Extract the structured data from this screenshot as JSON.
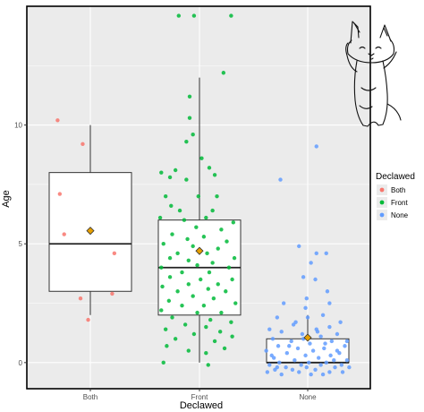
{
  "chart_data": {
    "type": "boxplot",
    "xlabel": "Declawed",
    "ylabel": "Age",
    "categories": [
      "Both",
      "Front",
      "None"
    ],
    "ylim": [
      -1.1,
      15
    ],
    "yticks": [
      0,
      5,
      10
    ],
    "grid": true,
    "legend": {
      "title": "Declawed",
      "position": "right",
      "entries": [
        "Both",
        "Front",
        "None"
      ]
    },
    "colors": {
      "Both": "#F8766D",
      "Front": "#00BA38",
      "None": "#619CFF",
      "mean_marker": "#E69F00",
      "panel": "#EBEBEB",
      "grid": "#FFFFFF"
    },
    "boxes": [
      {
        "category": "Both",
        "q1": 3.0,
        "median": 5.0,
        "q3": 8.0,
        "whisker_low": 2.0,
        "whisker_high": 10.0,
        "mean": 5.55
      },
      {
        "category": "Front",
        "q1": 2.0,
        "median": 4.0,
        "q3": 6.0,
        "whisker_low": 0.0,
        "whisker_high": 12.0,
        "mean": 4.7
      },
      {
        "category": "None",
        "q1": 0.0,
        "median": 0.0,
        "q3": 1.0,
        "whisker_low": 0.0,
        "whisker_high": 2.0,
        "mean": 1.05
      }
    ],
    "points": {
      "Both": [
        [
          -0.3,
          10.2
        ],
        [
          -0.07,
          9.2
        ],
        [
          -0.28,
          7.1
        ],
        [
          -0.24,
          5.4
        ],
        [
          0.22,
          4.6
        ],
        [
          -0.09,
          2.7
        ],
        [
          0.2,
          2.9
        ],
        [
          -0.02,
          1.8
        ]
      ],
      "Front": [
        [
          -0.19,
          14.6
        ],
        [
          -0.05,
          14.6
        ],
        [
          0.29,
          14.6
        ],
        [
          0.22,
          12.2
        ],
        [
          -0.09,
          11.2
        ],
        [
          -0.09,
          10.3
        ],
        [
          -0.06,
          9.6
        ],
        [
          -0.12,
          9.3
        ],
        [
          0.02,
          8.6
        ],
        [
          0.09,
          8.2
        ],
        [
          -0.35,
          8.0
        ],
        [
          -0.27,
          7.8
        ],
        [
          -0.22,
          8.1
        ],
        [
          -0.12,
          7.7
        ],
        [
          0.14,
          7.9
        ],
        [
          -0.31,
          7.0
        ],
        [
          -0.01,
          7.0
        ],
        [
          0.16,
          7.0
        ],
        [
          -0.26,
          6.6
        ],
        [
          -0.18,
          6.4
        ],
        [
          0.12,
          6.4
        ],
        [
          -0.36,
          6.1
        ],
        [
          -0.14,
          6.0
        ],
        [
          0.06,
          6.1
        ],
        [
          0.31,
          5.9
        ],
        [
          -0.03,
          5.7
        ],
        [
          0.2,
          5.6
        ],
        [
          -0.25,
          5.4
        ],
        [
          0.04,
          5.3
        ],
        [
          -0.11,
          5.2
        ],
        [
          0.25,
          5.1
        ],
        [
          -0.33,
          5.0
        ],
        [
          -0.06,
          4.9
        ],
        [
          0.17,
          4.8
        ],
        [
          -0.2,
          4.6
        ],
        [
          0.07,
          4.6
        ],
        [
          -0.27,
          4.4
        ],
        [
          0.32,
          4.4
        ],
        [
          -0.1,
          4.3
        ],
        [
          0.12,
          4.2
        ],
        [
          -0.02,
          4.1
        ],
        [
          -0.35,
          4.0
        ],
        [
          0.27,
          4.0
        ],
        [
          -0.16,
          3.8
        ],
        [
          0.09,
          3.8
        ],
        [
          -0.27,
          3.6
        ],
        [
          0.01,
          3.5
        ],
        [
          0.3,
          3.5
        ],
        [
          -0.1,
          3.3
        ],
        [
          0.17,
          3.3
        ],
        [
          -0.34,
          3.2
        ],
        [
          0.08,
          3.1
        ],
        [
          -0.2,
          3.0
        ],
        [
          0.24,
          3.0
        ],
        [
          -0.06,
          2.8
        ],
        [
          0.13,
          2.7
        ],
        [
          -0.28,
          2.6
        ],
        [
          0.33,
          2.5
        ],
        [
          -0.16,
          2.4
        ],
        [
          0.04,
          2.4
        ],
        [
          -0.35,
          2.2
        ],
        [
          -0.02,
          2.1
        ],
        [
          0.2,
          2.1
        ],
        [
          -0.25,
          1.9
        ],
        [
          0.1,
          1.8
        ],
        [
          0.29,
          1.7
        ],
        [
          -0.13,
          1.6
        ],
        [
          0.06,
          1.5
        ],
        [
          -0.31,
          1.4
        ],
        [
          0.19,
          1.3
        ],
        [
          -0.05,
          1.2
        ],
        [
          0.3,
          1.1
        ],
        [
          -0.22,
          1.0
        ],
        [
          0.14,
          0.9
        ],
        [
          -0.3,
          0.7
        ],
        [
          0.23,
          0.6
        ],
        [
          -0.1,
          0.5
        ],
        [
          0.06,
          0.4
        ],
        [
          -0.33,
          0.0
        ],
        [
          0.08,
          -0.1
        ]
      ],
      "None": [
        [
          -0.25,
          7.7
        ],
        [
          0.08,
          9.1
        ],
        [
          -0.08,
          4.9
        ],
        [
          0.08,
          4.6
        ],
        [
          0.17,
          4.6
        ],
        [
          0.03,
          4.2
        ],
        [
          -0.04,
          3.6
        ],
        [
          0.07,
          3.5
        ],
        [
          0.18,
          3.0
        ],
        [
          -0.01,
          2.7
        ],
        [
          -0.22,
          2.5
        ],
        [
          0.2,
          2.5
        ],
        [
          -0.02,
          2.3
        ],
        [
          0.14,
          2.0
        ],
        [
          -0.28,
          1.9
        ],
        [
          0.0,
          1.9
        ],
        [
          0.3,
          1.7
        ],
        [
          -0.13,
          1.6
        ],
        [
          0.2,
          1.5
        ],
        [
          -0.35,
          1.4
        ],
        [
          0.08,
          1.4
        ],
        [
          -0.24,
          1.3
        ],
        [
          0.27,
          1.2
        ],
        [
          -0.05,
          1.2
        ],
        [
          0.12,
          1.1
        ],
        [
          -0.32,
          1.0
        ],
        [
          -0.15,
          0.9
        ],
        [
          0.22,
          0.9
        ],
        [
          0.02,
          0.8
        ],
        [
          0.34,
          0.7
        ],
        [
          -0.27,
          0.7
        ],
        [
          -0.09,
          0.6
        ],
        [
          0.15,
          0.6
        ],
        [
          -0.38,
          0.5
        ],
        [
          0.05,
          0.5
        ],
        [
          0.29,
          0.4
        ],
        [
          -0.19,
          0.4
        ],
        [
          -0.02,
          0.3
        ],
        [
          0.21,
          0.3
        ],
        [
          -0.31,
          0.2
        ],
        [
          0.1,
          0.2
        ],
        [
          0.36,
          0.1
        ],
        [
          -0.12,
          0.1
        ],
        [
          -0.26,
          0.0
        ],
        [
          0.01,
          0.0
        ],
        [
          0.17,
          0.0
        ],
        [
          0.31,
          -0.1
        ],
        [
          -0.35,
          -0.1
        ],
        [
          -0.06,
          -0.1
        ],
        [
          0.12,
          -0.1
        ],
        [
          -0.2,
          -0.2
        ],
        [
          0.25,
          -0.2
        ],
        [
          -0.01,
          -0.2
        ],
        [
          0.38,
          -0.2
        ],
        [
          -0.3,
          -0.3
        ],
        [
          0.07,
          -0.3
        ],
        [
          -0.14,
          -0.3
        ],
        [
          0.2,
          -0.4
        ],
        [
          -0.37,
          -0.4
        ],
        [
          0.32,
          -0.4
        ],
        [
          -0.08,
          -0.4
        ],
        [
          -0.24,
          -0.5
        ],
        [
          0.14,
          -0.5
        ],
        [
          0.03,
          -0.5
        ],
        [
          -0.33,
          0.3
        ],
        [
          0.27,
          0.5
        ],
        [
          -0.17,
          0.7
        ],
        [
          0.36,
          0.9
        ],
        [
          -0.04,
          1.0
        ],
        [
          0.09,
          1.3
        ],
        [
          -0.11,
          1.7
        ],
        [
          0.24,
          0.1
        ],
        [
          -0.28,
          -0.2
        ],
        [
          0.16,
          0.8
        ]
      ]
    }
  }
}
